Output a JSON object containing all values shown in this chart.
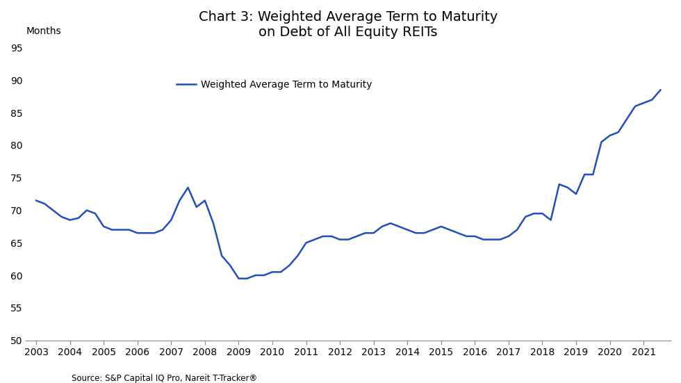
{
  "title": "Chart 3: Weighted Average Term to Maturity\non Debt of All Equity REITs",
  "ylabel": "Months",
  "source": "Source: S&P Capital IQ Pro, Nareit T-Tracker®",
  "legend_label": "Weighted Average Term to Maturity",
  "line_color": "#1F4FBF",
  "ylim": [
    50,
    95
  ],
  "yticks": [
    50,
    55,
    60,
    65,
    70,
    75,
    80,
    85,
    90,
    95
  ],
  "x_labels": [
    "2003",
    "2004",
    "2005",
    "2006",
    "2007",
    "2008",
    "2009",
    "2010",
    "2011",
    "2012",
    "2013",
    "2014",
    "2015",
    "2016",
    "2017",
    "2018",
    "2019",
    "2020",
    "2021"
  ],
  "data": [
    [
      2003.0,
      71.5
    ],
    [
      2003.25,
      71.0
    ],
    [
      2003.5,
      70.0
    ],
    [
      2003.75,
      69.0
    ],
    [
      2004.0,
      68.5
    ],
    [
      2004.25,
      68.8
    ],
    [
      2004.5,
      70.0
    ],
    [
      2004.75,
      69.5
    ],
    [
      2005.0,
      67.5
    ],
    [
      2005.25,
      67.0
    ],
    [
      2005.5,
      67.0
    ],
    [
      2005.75,
      67.0
    ],
    [
      2006.0,
      66.5
    ],
    [
      2006.25,
      66.5
    ],
    [
      2006.5,
      66.5
    ],
    [
      2006.75,
      67.0
    ],
    [
      2007.0,
      68.5
    ],
    [
      2007.25,
      71.5
    ],
    [
      2007.5,
      73.5
    ],
    [
      2007.75,
      70.5
    ],
    [
      2008.0,
      71.5
    ],
    [
      2008.25,
      68.0
    ],
    [
      2008.5,
      63.0
    ],
    [
      2008.75,
      61.5
    ],
    [
      2009.0,
      59.5
    ],
    [
      2009.25,
      59.5
    ],
    [
      2009.5,
      60.0
    ],
    [
      2009.75,
      60.0
    ],
    [
      2010.0,
      60.5
    ],
    [
      2010.25,
      60.5
    ],
    [
      2010.5,
      61.5
    ],
    [
      2010.75,
      63.0
    ],
    [
      2011.0,
      65.0
    ],
    [
      2011.25,
      65.5
    ],
    [
      2011.5,
      66.0
    ],
    [
      2011.75,
      66.0
    ],
    [
      2012.0,
      65.5
    ],
    [
      2012.25,
      65.5
    ],
    [
      2012.5,
      66.0
    ],
    [
      2012.75,
      66.5
    ],
    [
      2013.0,
      66.5
    ],
    [
      2013.25,
      67.5
    ],
    [
      2013.5,
      68.0
    ],
    [
      2013.75,
      67.5
    ],
    [
      2014.0,
      67.0
    ],
    [
      2014.25,
      66.5
    ],
    [
      2014.5,
      66.5
    ],
    [
      2014.75,
      67.0
    ],
    [
      2015.0,
      67.5
    ],
    [
      2015.25,
      67.0
    ],
    [
      2015.5,
      66.5
    ],
    [
      2015.75,
      66.0
    ],
    [
      2016.0,
      66.0
    ],
    [
      2016.25,
      65.5
    ],
    [
      2016.5,
      65.5
    ],
    [
      2016.75,
      65.5
    ],
    [
      2017.0,
      66.0
    ],
    [
      2017.25,
      67.0
    ],
    [
      2017.5,
      69.0
    ],
    [
      2017.75,
      69.5
    ],
    [
      2018.0,
      69.5
    ],
    [
      2018.25,
      68.5
    ],
    [
      2018.5,
      74.0
    ],
    [
      2018.75,
      73.5
    ],
    [
      2019.0,
      72.5
    ],
    [
      2019.25,
      75.5
    ],
    [
      2019.5,
      75.5
    ],
    [
      2019.75,
      80.5
    ],
    [
      2020.0,
      81.5
    ],
    [
      2020.25,
      82.0
    ],
    [
      2020.5,
      84.0
    ],
    [
      2020.75,
      86.0
    ],
    [
      2021.0,
      86.5
    ],
    [
      2021.25,
      87.0
    ],
    [
      2021.5,
      88.5
    ]
  ]
}
